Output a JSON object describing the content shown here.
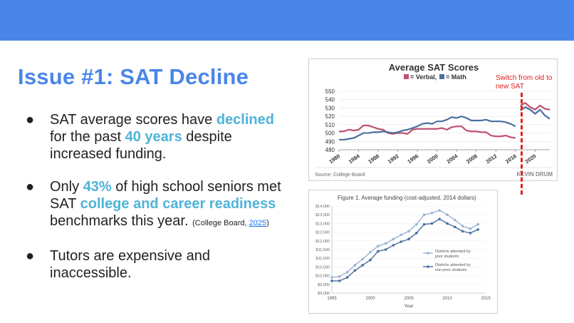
{
  "slide": {
    "title": "Issue #1: SAT Decline",
    "bullets": [
      {
        "part1": "SAT average scores have ",
        "hl1": "declined",
        "part2": " for the past ",
        "hl2": "40 years",
        "part3": " despite increased funding."
      },
      {
        "part1": "Only ",
        "hl1": "43%",
        "part2": " of high school seniors met SAT ",
        "hl2": "college and career readiness",
        "part3": " benchmarks this year. ",
        "cite_pre": "(College Board, ",
        "cite_link": "2025",
        "cite_post": ")"
      },
      {
        "part1": "Tutors are expensive and inaccessible."
      }
    ],
    "switch_note": "Switch from old to new SAT",
    "colors": {
      "topbar": "#4a86e8",
      "title": "#4a86e8",
      "highlight": "#4fb3d9",
      "annotation": "#e02020"
    }
  },
  "chart_data": [
    {
      "type": "line",
      "title": "Average SAT Scores",
      "legend": [
        "= Verbal,",
        "= Math"
      ],
      "source": "Source: College Board",
      "watermark": "KEVIN DRUM",
      "ylim": [
        480,
        550
      ],
      "yticks": [
        480,
        490,
        500,
        510,
        520,
        530,
        540,
        550
      ],
      "xlim": [
        1980,
        2023
      ],
      "xticks": [
        1980,
        1984,
        1988,
        1992,
        1996,
        2000,
        2004,
        2008,
        2012,
        2016,
        2020
      ],
      "series": [
        {
          "name": "Verbal",
          "color": "#c0506e",
          "x": [
            1980,
            1981,
            1982,
            1983,
            1984,
            1985,
            1986,
            1987,
            1988,
            1989,
            1990,
            1991,
            1992,
            1993,
            1994,
            1995,
            1996,
            1997,
            1998,
            1999,
            2000,
            2001,
            2002,
            2003,
            2004,
            2005,
            2006,
            2007,
            2008,
            2009,
            2010,
            2011,
            2012,
            2013,
            2014,
            2015,
            2016
          ],
          "values": [
            502,
            502,
            504,
            503,
            504,
            509,
            509,
            507,
            505,
            504,
            500,
            499,
            500,
            500,
            499,
            504,
            505,
            505,
            505,
            505,
            505,
            506,
            504,
            507,
            508,
            508,
            503,
            502,
            502,
            501,
            501,
            497,
            496,
            496,
            497,
            495,
            494
          ]
        },
        {
          "name": "Math",
          "color": "#4a6fa0",
          "x": [
            1980,
            1981,
            1982,
            1983,
            1984,
            1985,
            1986,
            1987,
            1988,
            1989,
            1990,
            1991,
            1992,
            1993,
            1994,
            1995,
            1996,
            1997,
            1998,
            1999,
            2000,
            2001,
            2002,
            2003,
            2004,
            2005,
            2006,
            2007,
            2008,
            2009,
            2010,
            2011,
            2012,
            2013,
            2014,
            2015,
            2016
          ],
          "values": [
            492,
            492,
            493,
            494,
            497,
            500,
            500,
            501,
            501,
            502,
            501,
            500,
            501,
            503,
            504,
            506,
            508,
            511,
            512,
            511,
            514,
            514,
            516,
            519,
            518,
            520,
            518,
            515,
            515,
            515,
            516,
            514,
            514,
            514,
            513,
            511,
            508
          ]
        },
        {
          "name": "Verbal (new SAT)",
          "color": "#c0506e",
          "x": [
            2017,
            2018,
            2019,
            2020,
            2021,
            2022,
            2023
          ],
          "values": [
            533,
            536,
            531,
            528,
            533,
            529,
            528
          ]
        },
        {
          "name": "Math (new SAT)",
          "color": "#4a6fa0",
          "x": [
            2017,
            2018,
            2019,
            2020,
            2021,
            2022,
            2023
          ],
          "values": [
            527,
            531,
            528,
            523,
            528,
            521,
            517
          ]
        }
      ]
    },
    {
      "type": "line",
      "title": "Figure 1. Average funding (cost-adjusted, 2014 dollars)",
      "xlabel": "Year",
      "ylim": [
        9000,
        14000
      ],
      "yticks": [
        "$9,000",
        "$9,500",
        "$10,000",
        "$10,500",
        "$11,000",
        "$11,500",
        "$12,000",
        "$12,500",
        "$13,000",
        "$13,500",
        "$14,000"
      ],
      "xlim": [
        1995,
        2015
      ],
      "xticks": [
        1995,
        2000,
        2005,
        2010,
        2015
      ],
      "series": [
        {
          "name": "Districts attended by poor students",
          "color": "#9ab3d6",
          "x": [
            1995,
            1996,
            1997,
            1998,
            1999,
            2000,
            2001,
            2002,
            2003,
            2004,
            2005,
            2006,
            2007,
            2008,
            2009,
            2010,
            2011,
            2012,
            2013,
            2014
          ],
          "values": [
            9900,
            9950,
            10200,
            10600,
            10950,
            11350,
            11700,
            11850,
            12100,
            12350,
            12550,
            12950,
            13500,
            13600,
            13750,
            13500,
            13200,
            12850,
            12700,
            12950
          ]
        },
        {
          "name": "Districts attended by non-poor students",
          "color": "#4a6fa0",
          "x": [
            1995,
            1996,
            1997,
            1998,
            1999,
            2000,
            2001,
            2002,
            2003,
            2004,
            2005,
            2006,
            2007,
            2008,
            2009,
            2010,
            2011,
            2012,
            2013,
            2014
          ],
          "values": [
            9700,
            9700,
            9900,
            10300,
            10600,
            10900,
            11400,
            11500,
            11750,
            11950,
            12100,
            12450,
            12950,
            13000,
            13250,
            13000,
            12800,
            12550,
            12450,
            12650
          ]
        }
      ]
    }
  ]
}
